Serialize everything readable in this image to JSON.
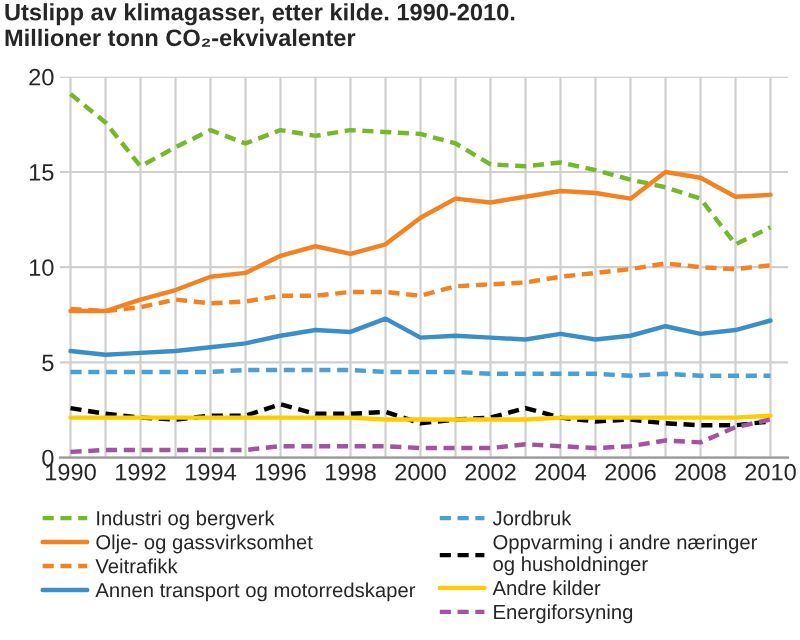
{
  "chart_data": {
    "type": "line",
    "title": "Utslipp av klimagasser, etter kilde. 1990-2010.",
    "subtitle": "Millioner tonn CO₂-ekvivalenter",
    "x": [
      1990,
      1991,
      1992,
      1993,
      1994,
      1995,
      1996,
      1997,
      1998,
      1999,
      2000,
      2001,
      2002,
      2003,
      2004,
      2005,
      2006,
      2007,
      2008,
      2009,
      2010
    ],
    "series": [
      {
        "name": "Industri og bergverk",
        "color": "#76b82a",
        "line_style": "dashed",
        "values": [
          19.1,
          17.6,
          15.3,
          16.3,
          17.2,
          16.5,
          17.2,
          16.9,
          17.2,
          17.1,
          17.0,
          16.5,
          15.4,
          15.3,
          15.5,
          15.1,
          14.6,
          14.2,
          13.6,
          11.2,
          12.1
        ]
      },
      {
        "name": "Olje- og gassvirksomhet",
        "color": "#f58220",
        "line_style": "solid",
        "values": [
          7.7,
          7.7,
          8.3,
          8.8,
          9.5,
          9.7,
          10.6,
          11.1,
          10.7,
          11.2,
          12.6,
          13.6,
          13.4,
          13.7,
          14.0,
          13.9,
          13.6,
          15.0,
          14.7,
          13.7,
          13.8
        ]
      },
      {
        "name": "Veitrafikk",
        "color": "#f58220",
        "line_style": "dashed",
        "values": [
          7.8,
          7.7,
          7.9,
          8.3,
          8.1,
          8.2,
          8.5,
          8.5,
          8.7,
          8.7,
          8.5,
          9.0,
          9.1,
          9.2,
          9.5,
          9.7,
          9.9,
          10.2,
          10.0,
          9.9,
          10.1
        ]
      },
      {
        "name": "Annen transport og motorredskaper",
        "color": "#3a8fc9",
        "line_style": "solid",
        "values": [
          5.6,
          5.4,
          5.5,
          5.6,
          5.8,
          6.0,
          6.4,
          6.7,
          6.6,
          7.3,
          6.3,
          6.4,
          6.3,
          6.2,
          6.5,
          6.2,
          6.4,
          6.9,
          6.5,
          6.7,
          7.2
        ]
      },
      {
        "name": "Jordbruk",
        "color": "#4a9fd8",
        "line_style": "dashed",
        "values": [
          4.5,
          4.5,
          4.5,
          4.5,
          4.5,
          4.6,
          4.6,
          4.6,
          4.6,
          4.5,
          4.5,
          4.5,
          4.4,
          4.4,
          4.4,
          4.4,
          4.3,
          4.4,
          4.3,
          4.3,
          4.3
        ]
      },
      {
        "name": "Oppvarming i andre næringer\nog husholdninger",
        "color": "#000000",
        "line_style": "dashed",
        "values": [
          2.6,
          2.3,
          2.1,
          2.0,
          2.2,
          2.2,
          2.8,
          2.3,
          2.3,
          2.4,
          1.8,
          2.0,
          2.1,
          2.6,
          2.1,
          1.9,
          2.0,
          1.8,
          1.7,
          1.7,
          1.9
        ]
      },
      {
        "name": "Andre kilder",
        "color": "#ffcc00",
        "line_style": "solid",
        "values": [
          2.1,
          2.1,
          2.1,
          2.1,
          2.1,
          2.1,
          2.1,
          2.1,
          2.1,
          2.0,
          2.0,
          2.0,
          2.0,
          2.0,
          2.1,
          2.1,
          2.1,
          2.1,
          2.1,
          2.1,
          2.2
        ]
      },
      {
        "name": "Energiforsyning",
        "color": "#a3539f",
        "line_style": "dashed",
        "values": [
          0.3,
          0.4,
          0.4,
          0.4,
          0.4,
          0.4,
          0.6,
          0.6,
          0.6,
          0.6,
          0.5,
          0.5,
          0.5,
          0.7,
          0.6,
          0.5,
          0.6,
          0.9,
          0.8,
          1.6,
          2.0
        ]
      }
    ],
    "xlim": [
      1989.7,
      2010.5
    ],
    "xticks": [
      1990,
      {
        "value": 1991,
        "label": null
      },
      1992,
      {
        "value": 1993,
        "label": null
      },
      1994,
      {
        "value": 1995,
        "label": null
      },
      1996,
      {
        "value": 1997,
        "label": null
      },
      1998,
      {
        "value": 1999,
        "label": null
      },
      2000,
      {
        "value": 2001,
        "label": null
      },
      2002,
      {
        "value": 2003,
        "label": null
      },
      2004,
      {
        "value": 2005,
        "label": null
      },
      2006,
      {
        "value": 2007,
        "label": null
      },
      2008,
      {
        "value": 2009,
        "label": null
      },
      2010
    ],
    "ylim": [
      0,
      20
    ],
    "yticks": [
      0,
      5,
      10,
      15,
      20
    ],
    "grid": true,
    "legend": "bottom",
    "marker": "none"
  }
}
